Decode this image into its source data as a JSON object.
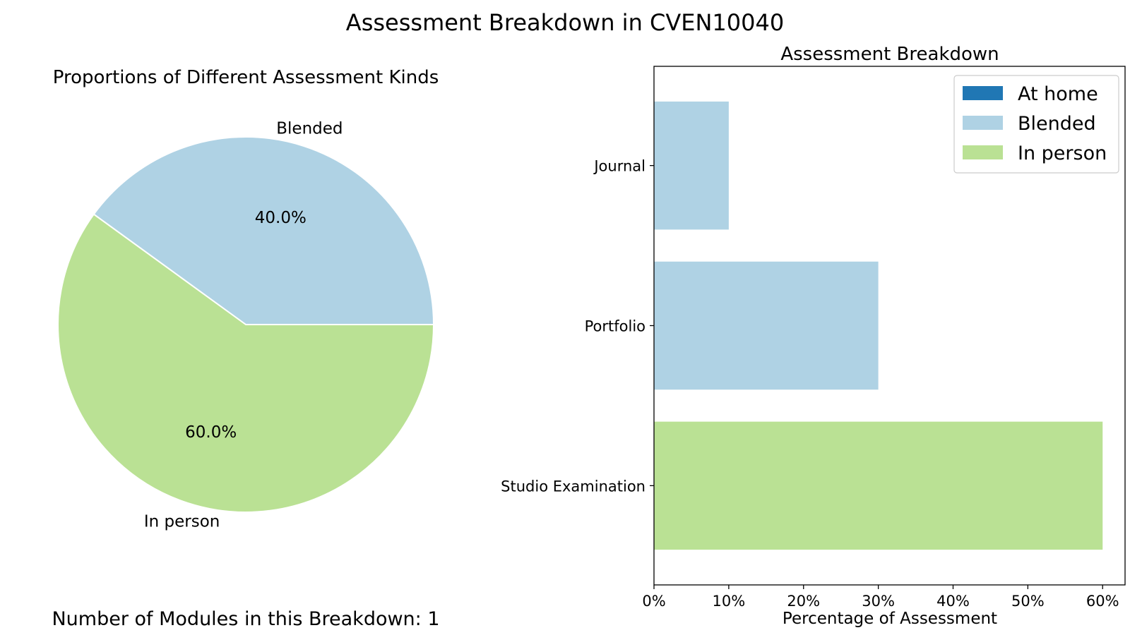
{
  "figure": {
    "title": "Assessment Breakdown in CVEN10040",
    "footer": "Number of Modules in this Breakdown: 1"
  },
  "chart_data": [
    {
      "type": "pie",
      "title": "Proportions of Different Assessment Kinds",
      "slices": [
        {
          "label": "Blended",
          "value": 40.0,
          "pct_label": "40.0%",
          "color": "#afd2e4"
        },
        {
          "label": "In person",
          "value": 60.0,
          "pct_label": "60.0%",
          "color": "#bae194"
        }
      ]
    },
    {
      "type": "bar",
      "orientation": "horizontal",
      "title": "Assessment Breakdown",
      "xlabel": "Percentage of Assessment",
      "ylabel": "",
      "xlim": [
        0,
        63
      ],
      "xticks": [
        0,
        10,
        20,
        30,
        40,
        50,
        60
      ],
      "xtick_labels": [
        "0%",
        "10%",
        "20%",
        "30%",
        "40%",
        "50%",
        "60%"
      ],
      "categories": [
        "Journal",
        "Portfolio",
        "Studio Examination"
      ],
      "bars": [
        {
          "category": "Journal",
          "value": 10,
          "kind": "Blended"
        },
        {
          "category": "Portfolio",
          "value": 30,
          "kind": "Blended"
        },
        {
          "category": "Studio Examination",
          "value": 60,
          "kind": "In person"
        }
      ],
      "legend": {
        "placement": "top-right",
        "entries": [
          {
            "label": "At home",
            "color": "#2077b4"
          },
          {
            "label": "Blended",
            "color": "#afd2e4"
          },
          {
            "label": "In person",
            "color": "#bae194"
          }
        ]
      },
      "grid": false
    }
  ]
}
